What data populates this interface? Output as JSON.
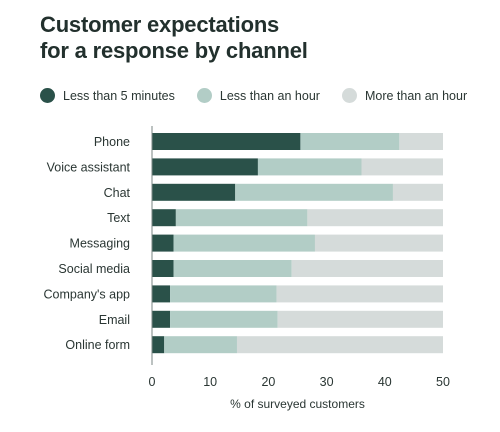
{
  "title_line1": "Customer expectations",
  "title_line2": "for a response by channel",
  "colors": {
    "dark": "#2a5149",
    "mid": "#b2cdc6",
    "light": "#d5dbda"
  },
  "chart_data": {
    "type": "bar",
    "orientation": "horizontal",
    "stacked": true,
    "categories": [
      "Phone",
      "Voice assistant",
      "Chat",
      "Text",
      "Messaging",
      "Social media",
      "Company's app",
      "Email",
      "Online form"
    ],
    "series": [
      {
        "name": "Less than 5 minutes",
        "values": [
          25.5,
          18.2,
          14.3,
          4.1,
          3.7,
          3.7,
          3.1,
          3.1,
          2.1
        ]
      },
      {
        "name": "Less than an hour",
        "values": [
          17,
          17.8,
          27.1,
          22.6,
          24.3,
          20.3,
          18.3,
          18.5,
          12.5
        ]
      },
      {
        "name": "More than an hour",
        "values": [
          7.5,
          14,
          8.6,
          23.3,
          22,
          26,
          28.6,
          28.4,
          35.4
        ]
      }
    ],
    "xlabel": "% of surveyed customers",
    "ylabel": "",
    "xlim": [
      0,
      50
    ],
    "xticks": [
      0,
      10,
      20,
      30,
      40,
      50
    ],
    "legend_position": "top",
    "grid": false
  }
}
